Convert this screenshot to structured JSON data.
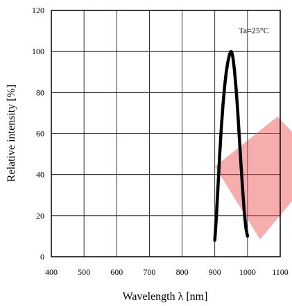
{
  "chart_data": {
    "type": "line",
    "title": "",
    "xlabel": "Wavelength λ [nm]",
    "ylabel": "Relative intensity [%]",
    "xlim": [
      400,
      1100
    ],
    "ylim": [
      0,
      120
    ],
    "xticks": [
      400,
      500,
      600,
      700,
      800,
      900,
      1000,
      1100
    ],
    "yticks": [
      0,
      20,
      40,
      60,
      80,
      100,
      120
    ],
    "grid": true,
    "annotation": "Ta=25°C",
    "series": [
      {
        "x": [
          900,
          905,
          910,
          915,
          920,
          925,
          930,
          935,
          940,
          945,
          948,
          950,
          952,
          955,
          960,
          965,
          970,
          975,
          980,
          985,
          990,
          995,
          1000
        ],
        "y": [
          8,
          20,
          35,
          50,
          63,
          74,
          83,
          90,
          95,
          98.5,
          99.7,
          100,
          99.5,
          97.5,
          91,
          82,
          71,
          58,
          45,
          33,
          22,
          14,
          10
        ]
      }
    ]
  }
}
